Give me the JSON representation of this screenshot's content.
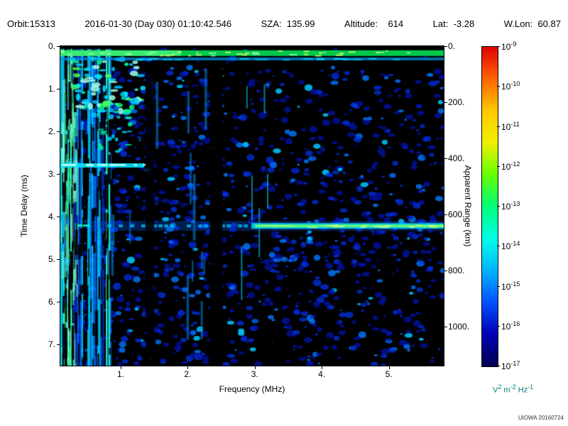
{
  "header": {
    "segments": [
      "Orbit:15313",
      "2016-01-30 (Day 030) 01:10:42.546",
      "SZA:  135.99",
      "Altitude:    614",
      "Lat:  -3.28",
      "W.Lon:  60.87"
    ]
  },
  "chart_data": {
    "type": "heatmap",
    "title": "",
    "xlabel": "Frequency (MHz)",
    "ylabel_left": "Time Delay (ms)",
    "ylabel_right": "Apparent Range (km)",
    "x_range_mhz": [
      0.1,
      5.82
    ],
    "y_range_ms": [
      0,
      7.5
    ],
    "right_range_km": [
      0,
      1140
    ],
    "x_ticks": {
      "values": [
        1,
        2,
        3,
        4,
        5
      ],
      "labels": [
        "1.",
        "2.",
        "3.",
        "4.",
        "5."
      ]
    },
    "y_ticks": {
      "values": [
        0,
        1,
        2,
        3,
        4,
        5,
        6,
        7
      ],
      "labels": [
        "0.",
        "1.",
        "2.",
        "3.",
        "4.",
        "5.",
        "6.",
        "7."
      ]
    },
    "right_ticks": {
      "values": [
        0,
        200,
        400,
        600,
        800,
        1000
      ],
      "labels": [
        "0.",
        "200.",
        "400.",
        "600.",
        "800.",
        "1000."
      ]
    },
    "colorbar": {
      "scale": "log",
      "exponents": [
        -9,
        -10,
        -11,
        -12,
        -13,
        -14,
        -15,
        -16,
        -17
      ],
      "colors": [
        "#e00000",
        "#ff6400",
        "#ffc800",
        "#f0f000",
        "#64ff00",
        "#00ff78",
        "#00ffe6",
        "#00b4ff",
        "#0050ff",
        "#0000b4",
        "#000050"
      ],
      "unit": {
        "v": "V",
        "v_exp": "2",
        "m": " m",
        "m_exp": "-2",
        "hz": " Hz",
        "hz_exp": "-1"
      }
    },
    "credit": "UIOWA 20160724",
    "features": {
      "seed": 20160130,
      "noise_blob_count": 2600,
      "top_surface_band_ms": 0.18,
      "secondary_band_ms": 0.3,
      "plasma_line_band": {
        "ms": 2.8,
        "f_max_mhz": 1.35
      },
      "main_echo_band": {
        "ms": 4.22,
        "f_from_mhz": 0.55,
        "bright_from_mhz": 2.95
      },
      "low_freq_stripes_max_mhz": 0.85,
      "blackout_columns_mhz": [
        [
          1.37,
          1.5
        ],
        [
          2.33,
          2.52
        ]
      ]
    }
  }
}
